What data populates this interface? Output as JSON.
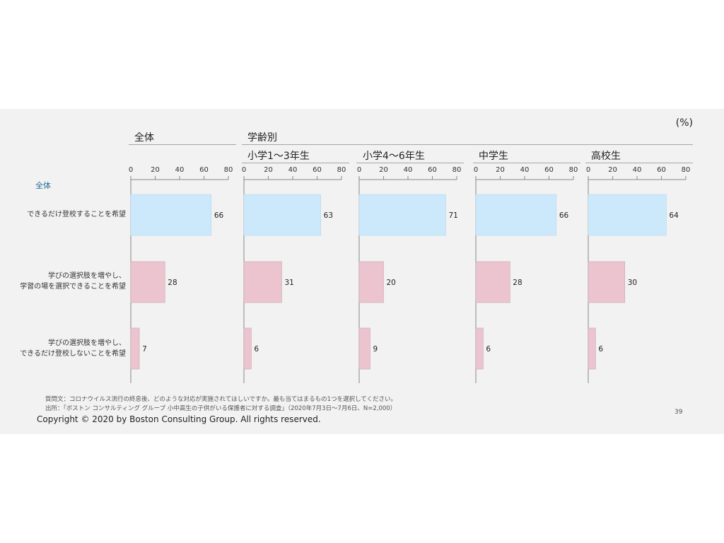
{
  "unit_label": "(%)",
  "overall_header": "全体",
  "grade_header": "学齢別",
  "row_group_label": "全体",
  "categories": [
    "できるだけ登校することを希望",
    "学びの選択肢を増やし、\n学習の場を選択できることを希望",
    "学びの選択肢を増やし、\nできるだけ登校しないことを希望"
  ],
  "footnotes": {
    "question": "質問文：コロナウイルス流行の終息後、どのような対応が実施されてほしいですか。最も当てはまるもの1つを選択してください。",
    "source": "出所：「ボストン コンサルティング グループ 小中高生の子供がいる保護者に対する調査」（2020年7月3日〜7月6日、N=2,000）"
  },
  "copyright": "Copyright © 2020 by Boston Consulting Group. All rights reserved.",
  "page_number": "39",
  "colors": {
    "first_bar": "#cce9fb",
    "other_bars": "#ecc4d0",
    "bar_stroke": "#c5a8b5",
    "axis": "#888888"
  },
  "chart_data": {
    "type": "bar",
    "orientation": "horizontal",
    "xlim": [
      0,
      80
    ],
    "ticks": [
      "0",
      "20",
      "40",
      "60",
      "80"
    ],
    "categories": [
      "できるだけ登校することを希望",
      "学びの選択肢を増やし、学習の場を選択できることを希望",
      "学びの選択肢を増やし、できるだけ登校しないことを希望"
    ],
    "panels": [
      {
        "name": "全体",
        "values": [
          66,
          28,
          7
        ]
      },
      {
        "name": "小学1〜3年生",
        "values": [
          63,
          31,
          6
        ]
      },
      {
        "name": "小学4〜6年生",
        "values": [
          71,
          20,
          9
        ]
      },
      {
        "name": "中学生",
        "values": [
          66,
          28,
          6
        ]
      },
      {
        "name": "高校生",
        "values": [
          64,
          30,
          6
        ]
      }
    ]
  }
}
